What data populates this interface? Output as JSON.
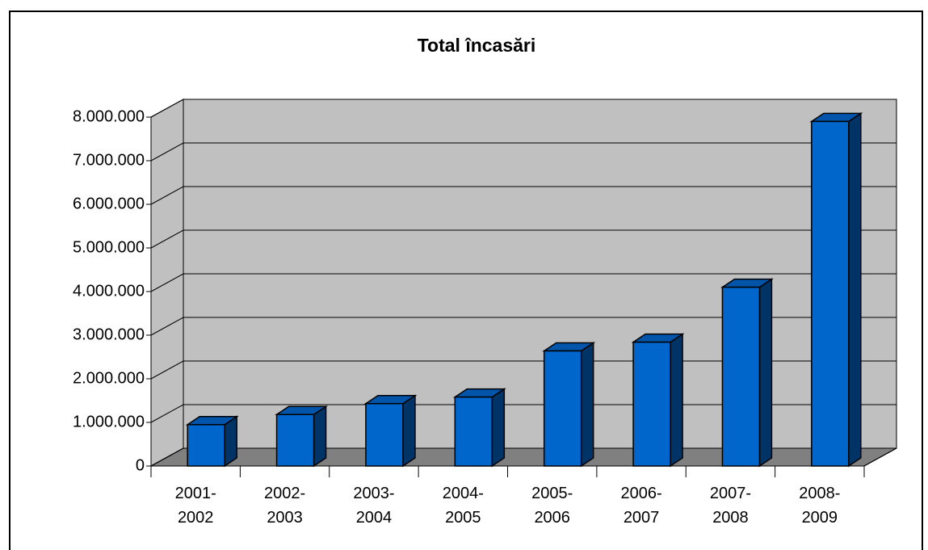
{
  "chart_data": {
    "type": "bar3d",
    "title": "Total încasări",
    "categories": [
      "2001-2002",
      "2002-2003",
      "2003-2004",
      "2004-2005",
      "2005-2006",
      "2006-2007",
      "2007-2008",
      "2008-2009"
    ],
    "values": [
      950000,
      1180000,
      1430000,
      1580000,
      2640000,
      2840000,
      4100000,
      7900000
    ],
    "color": "#0066cc",
    "ylim": [
      0,
      8000000
    ],
    "yticks": [
      0,
      {
        "value": 1000000,
        "label": "1.000.000"
      },
      {
        "value": 2000000,
        "label": "2.000.000"
      },
      {
        "value": 3000000,
        "label": "3.000.000"
      },
      {
        "value": 4000000,
        "label": "4.000.000"
      },
      {
        "value": 5000000,
        "label": "5.000.000"
      },
      {
        "value": 6000000,
        "label": "6.000.000"
      },
      {
        "value": 7000000,
        "label": "7.000.000"
      },
      {
        "value": 8000000,
        "label": "8.000.000"
      }
    ],
    "grid": true
  }
}
